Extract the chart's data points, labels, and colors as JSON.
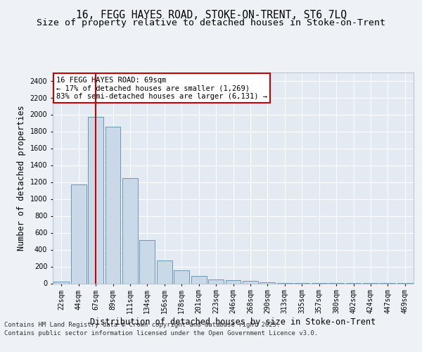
{
  "title_line1": "16, FEGG HAYES ROAD, STOKE-ON-TRENT, ST6 7LQ",
  "title_line2": "Size of property relative to detached houses in Stoke-on-Trent",
  "xlabel": "Distribution of detached houses by size in Stoke-on-Trent",
  "ylabel": "Number of detached properties",
  "categories": [
    "22sqm",
    "44sqm",
    "67sqm",
    "89sqm",
    "111sqm",
    "134sqm",
    "156sqm",
    "178sqm",
    "201sqm",
    "223sqm",
    "246sqm",
    "268sqm",
    "290sqm",
    "313sqm",
    "335sqm",
    "357sqm",
    "380sqm",
    "402sqm",
    "424sqm",
    "447sqm",
    "469sqm"
  ],
  "values": [
    25,
    1175,
    1975,
    1855,
    1245,
    515,
    275,
    155,
    88,
    50,
    35,
    30,
    12,
    8,
    5,
    4,
    3,
    2,
    2,
    1,
    1
  ],
  "bar_color": "#c9d9e8",
  "bar_edge_color": "#5a8aaa",
  "highlight_bar_index": 2,
  "highlight_line_color": "#cc0000",
  "annotation_text": "16 FEGG HAYES ROAD: 69sqm\n← 17% of detached houses are smaller (1,269)\n83% of semi-detached houses are larger (6,131) →",
  "annotation_box_edge_color": "#cc0000",
  "ylim": [
    0,
    2500
  ],
  "yticks": [
    0,
    200,
    400,
    600,
    800,
    1000,
    1200,
    1400,
    1600,
    1800,
    2000,
    2200,
    2400
  ],
  "footer_line1": "Contains HM Land Registry data © Crown copyright and database right 2025.",
  "footer_line2": "Contains public sector information licensed under the Open Government Licence v3.0.",
  "bg_color": "#eef2f7",
  "plot_bg_color": "#e4eaf2",
  "grid_color": "#ffffff",
  "title_fontsize": 10.5,
  "subtitle_fontsize": 9.5,
  "axis_label_fontsize": 8.5,
  "tick_fontsize": 7,
  "footer_fontsize": 6.5
}
